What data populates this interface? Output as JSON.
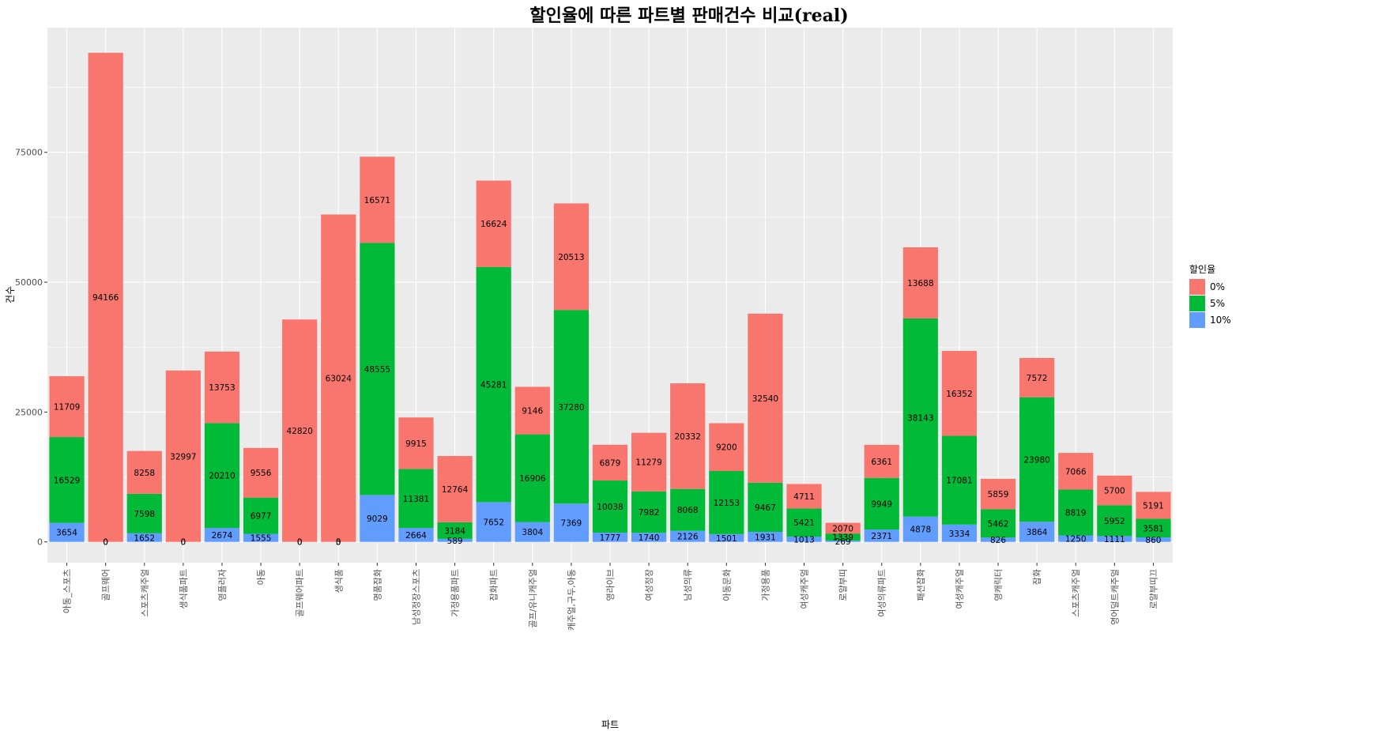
{
  "chart_data": {
    "type": "bar",
    "stacked": true,
    "title": "할인율에 따른 파트별 판매건수 비교(real)",
    "xlabel": "파트",
    "ylabel": "건수",
    "ylim": [
      -4000,
      99000
    ],
    "yticks": [
      0,
      25000,
      50000,
      75000
    ],
    "grid": true,
    "legend_position": "right",
    "legend_title": "할인율",
    "categories": [
      "아동_스포츠",
      "골프웨어",
      "스포츠캐주얼",
      "생식품파트",
      "영플러자",
      "아동",
      "골프웨어파트",
      "생식품",
      "명품잡화",
      "남성정장스포츠",
      "가정용품파트",
      "잡화파트",
      "골프/유니캐주얼",
      "캐주얼,구두,아동",
      "영라이브",
      "여성정장",
      "남성의류",
      "아동문화",
      "가정용품",
      "여성캐주얼",
      "로얄부띠",
      "여성의류파트",
      "패션잡화",
      "여성캐주얼",
      "영캐릭터",
      "잡화",
      "스포츠캐주얼",
      "영어덜트캐주얼",
      "로얄부띠끄"
    ],
    "series": [
      {
        "name": "10%",
        "color": "#619CFF",
        "values": [
          3654,
          0,
          1652,
          0,
          2674,
          1555,
          0,
          5,
          9029,
          2664,
          589,
          7652,
          3804,
          7369,
          1777,
          1740,
          2126,
          1501,
          1931,
          1013,
          269,
          2371,
          4878,
          3334,
          826,
          3864,
          1250,
          1111,
          860
        ]
      },
      {
        "name": "5%",
        "color": "#00BA38",
        "values": [
          16529,
          0,
          7598,
          0,
          20210,
          6977,
          0,
          0,
          48555,
          11381,
          3184,
          45281,
          16906,
          37280,
          10038,
          7982,
          8068,
          12153,
          9467,
          5421,
          1339,
          9949,
          38143,
          17081,
          5462,
          23980,
          8819,
          5952,
          3581
        ]
      },
      {
        "name": "0%",
        "color": "#F8766D",
        "values": [
          11709,
          94166,
          8258,
          32997,
          13753,
          9556,
          42820,
          63024,
          16571,
          9915,
          12764,
          16624,
          9146,
          20513,
          6879,
          11279,
          20332,
          9200,
          32540,
          4711,
          2070,
          6361,
          13688,
          16352,
          5859,
          7572,
          7066,
          5700,
          5191
        ]
      }
    ]
  }
}
